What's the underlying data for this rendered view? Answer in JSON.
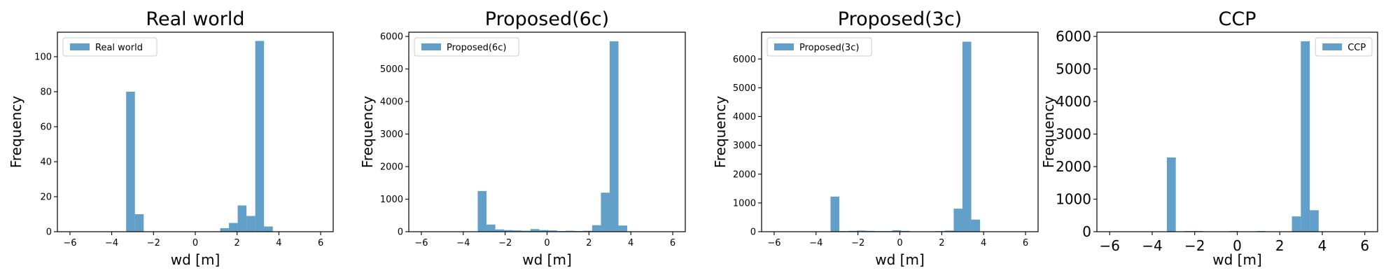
{
  "chart_data": [
    {
      "type": "bar",
      "title": "Real world",
      "xlabel": "wd [m]",
      "ylabel": "Frequency",
      "legend": "top-left",
      "legend_label": "Real world",
      "xlim": [
        -6.6,
        6.6
      ],
      "ylim": [
        0,
        114
      ],
      "xticks": [
        -6,
        -4,
        -2,
        0,
        2,
        4,
        6
      ],
      "yticks": [
        0,
        20,
        40,
        60,
        80,
        100
      ],
      "bar_width": 0.42,
      "bins_left": [
        -3.31,
        -2.89,
        1.19,
        1.61,
        2.03,
        2.45,
        2.87,
        3.29
      ],
      "values": [
        80,
        10,
        2,
        5,
        15,
        9,
        109,
        3
      ],
      "tick_font": 13,
      "label_font": 20,
      "title_font": 27
    },
    {
      "type": "bar",
      "title": "Proposed(6c)",
      "xlabel": "wd [m]",
      "ylabel": "Frequency",
      "legend": "top-left",
      "legend_label": "Proposed(6c)",
      "xlim": [
        -6.6,
        6.6
      ],
      "ylim": [
        0,
        6130
      ],
      "xticks": [
        -6,
        -4,
        -2,
        0,
        2,
        4,
        6
      ],
      "yticks": [
        0,
        1000,
        2000,
        3000,
        4000,
        5000,
        6000
      ],
      "bar_width": 0.42,
      "bins_left": [
        -3.31,
        -2.89,
        -2.47,
        -2.05,
        -1.63,
        -1.21,
        -0.79,
        -0.37,
        0.05,
        0.47,
        0.89,
        1.31,
        1.73,
        2.15,
        2.57,
        2.99,
        3.41
      ],
      "values": [
        1250,
        220,
        70,
        50,
        40,
        30,
        80,
        50,
        40,
        20,
        30,
        20,
        30,
        200,
        1200,
        5850,
        190
      ],
      "tick_font": 13,
      "label_font": 20,
      "title_font": 27
    },
    {
      "type": "bar",
      "title": "Proposed(3c)",
      "xlabel": "wd [m]",
      "ylabel": "Frequency",
      "legend": "top-left",
      "legend_label": "Proposed(3c)",
      "xlim": [
        -6.6,
        6.6
      ],
      "ylim": [
        0,
        6930
      ],
      "xticks": [
        -6,
        -4,
        -2,
        0,
        2,
        4,
        6
      ],
      "yticks": [
        0,
        1000,
        2000,
        3000,
        4000,
        5000,
        6000
      ],
      "bar_width": 0.42,
      "bins_left": [
        -3.31,
        -2.89,
        -2.47,
        -2.05,
        -1.63,
        -1.21,
        -0.79,
        -0.37,
        0.05,
        0.47,
        0.89,
        1.31,
        1.73,
        2.15,
        2.57,
        2.99,
        3.41
      ],
      "values": [
        1220,
        20,
        30,
        40,
        30,
        20,
        20,
        50,
        30,
        10,
        10,
        10,
        20,
        40,
        800,
        6600,
        420
      ],
      "tick_font": 13,
      "label_font": 20,
      "title_font": 27
    },
    {
      "type": "bar",
      "title": "CCP",
      "xlabel": "wd [m]",
      "ylabel": "Frequency",
      "legend": "top-right",
      "legend_label": "CCP",
      "xlim": [
        -6.6,
        6.6
      ],
      "ylim": [
        0,
        6130
      ],
      "xticks": [
        -6,
        -4,
        -2,
        0,
        2,
        4,
        6
      ],
      "yticks": [
        0,
        1000,
        2000,
        3000,
        4000,
        5000,
        6000
      ],
      "bar_width": 0.42,
      "bins_left": [
        -3.31,
        -2.89,
        -2.47,
        -2.05,
        -1.63,
        -1.21,
        -0.79,
        -0.37,
        0.05,
        0.47,
        0.89,
        1.31,
        1.73,
        2.15,
        2.57,
        2.99,
        3.41
      ],
      "values": [
        2280,
        10,
        20,
        20,
        10,
        10,
        10,
        20,
        10,
        10,
        20,
        10,
        10,
        10,
        470,
        5850,
        660
      ],
      "tick_font": 20,
      "label_font": 20,
      "title_font": 27
    }
  ]
}
